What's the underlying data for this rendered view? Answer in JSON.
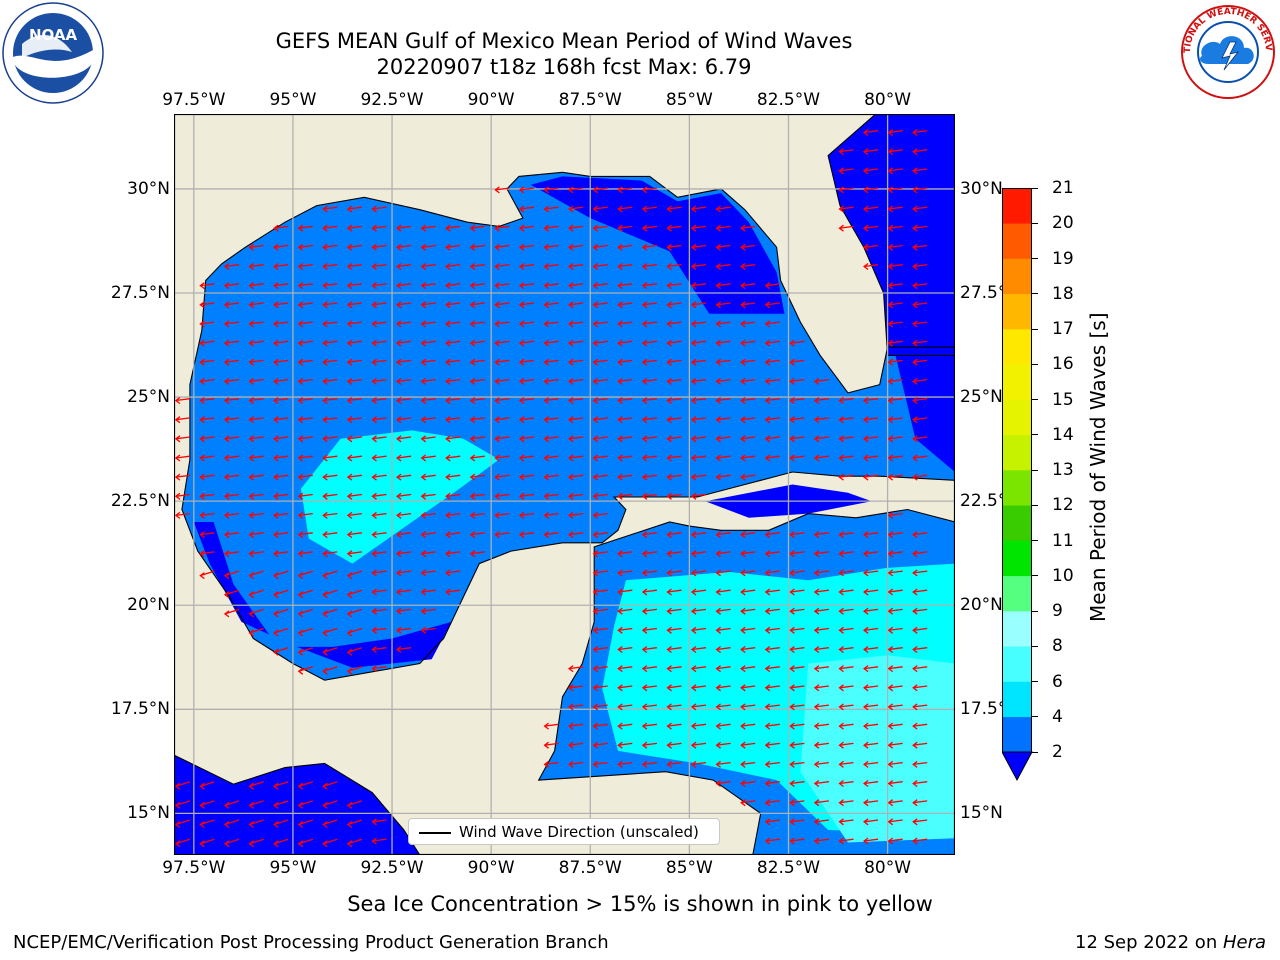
{
  "header": {
    "title_line1": "GEFS MEAN Gulf of Mexico Mean Period of Wind Waves",
    "title_line2": "20220907 t18z 168h fcst   Max: 6.79"
  },
  "map": {
    "lon_ticks": [
      "97.5°W",
      "95°W",
      "92.5°W",
      "90°W",
      "87.5°W",
      "85°W",
      "82.5°W",
      "80°W"
    ],
    "lat_ticks": [
      "30°N",
      "27.5°N",
      "25°N",
      "22.5°N",
      "20°N",
      "17.5°N",
      "15°N"
    ],
    "lon_range": [
      -98,
      -78.3
    ],
    "lat_range": [
      14,
      31.8
    ],
    "colors": {
      "land": "#efedda",
      "ocean_low": "#0000ff",
      "ocean_mid": "#007fff",
      "ocean_high": "#00ffff",
      "ocean_higher": "#4cffff",
      "arrow": "#ff0000",
      "grid": "#b0b0b0"
    },
    "legend_label": "Wind Wave Direction (unscaled)"
  },
  "colorbar": {
    "label": "Mean Period of Wind Waves [s]",
    "ticks": [
      "2",
      "4",
      "6",
      "8",
      "9",
      "10",
      "11",
      "12",
      "13",
      "14",
      "15",
      "16",
      "17",
      "18",
      "19",
      "20",
      "21"
    ],
    "colors": [
      "#0072ff",
      "#00e5ff",
      "#48ffff",
      "#99ffff",
      "#55ff7f",
      "#00e500",
      "#39cc00",
      "#7be500",
      "#c6f200",
      "#e5f200",
      "#f2f200",
      "#ffe800",
      "#ffb700",
      "#ff8c00",
      "#ff5a00",
      "#ff1a00"
    ],
    "extend_color": "#0000ff"
  },
  "logos": {
    "left": "NOAA",
    "right": "NATIONAL WEATHER SERVICE"
  },
  "footer": {
    "note": "Sea Ice Concentration > 15% is shown in pink to yellow",
    "left": "NCEP/EMC/Verification Post Processing Product Generation Branch",
    "right_prefix": "12 Sep 2022 on ",
    "right_host": "Hera"
  }
}
